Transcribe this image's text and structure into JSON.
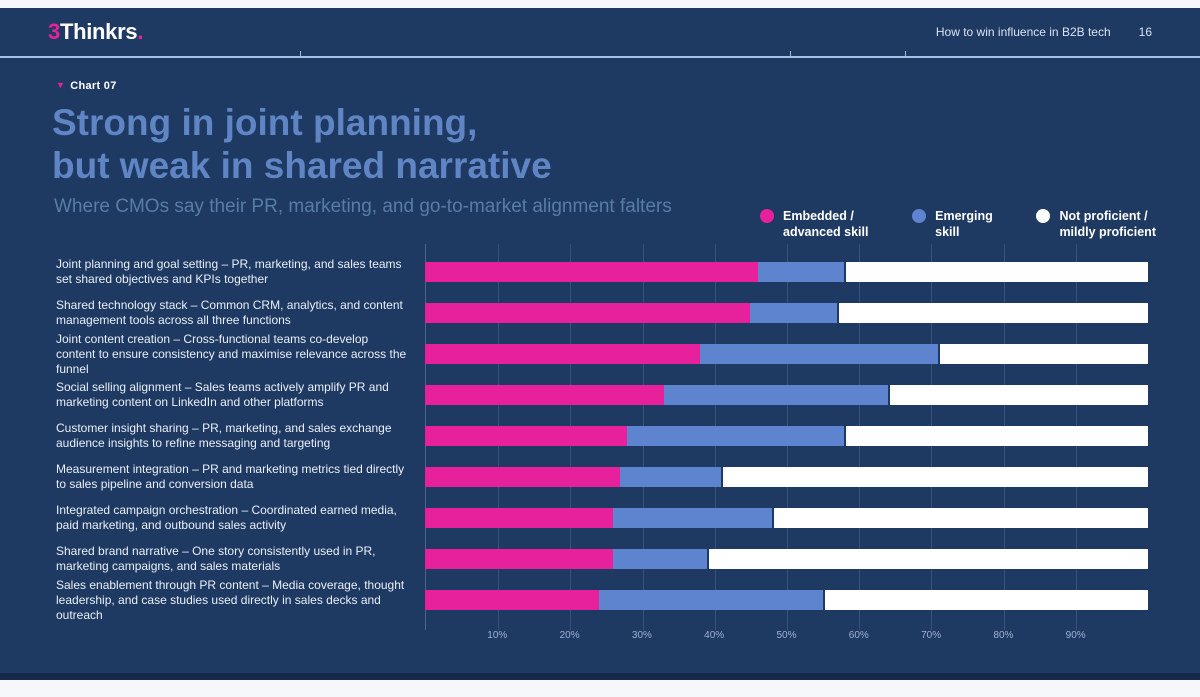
{
  "header": {
    "logo_prefix": "3",
    "logo_name": "Thinkrs",
    "logo_dot": ".",
    "doc_title": "How to win influence in B2B tech",
    "page_number": "16"
  },
  "chart_label": "Chart 07",
  "title_line1": "Strong in joint planning,",
  "title_line2": "but weak in shared narrative",
  "subtitle": "Where CMOs say their PR, marketing, and go-to-market alignment falters",
  "legend": {
    "items": [
      {
        "line1": "Embedded /",
        "line2": "advanced skill",
        "color": "#e6219b"
      },
      {
        "line1": "Emerging",
        "line2": "skill",
        "color": "#5f84cf"
      },
      {
        "line1": "Not proficient /",
        "line2": "mildly proficient",
        "color": "#ffffff"
      }
    ]
  },
  "colors": {
    "background": "#1f3a62",
    "footer_band": "#16294a",
    "divider": "#a6c1e6",
    "title": "#5f85c5",
    "subtitle": "#587ca8",
    "accent_pink": "#e6219b",
    "accent_blue": "#5f84cf",
    "accent_white": "#ffffff"
  },
  "chart_data": {
    "type": "bar",
    "orientation": "horizontal",
    "stacked": true,
    "unit": "%",
    "xlim": [
      0,
      100
    ],
    "grid": true,
    "legend_position": "top-right",
    "x_ticks": [
      "10%",
      "20%",
      "30%",
      "40%",
      "50%",
      "60%",
      "70%",
      "80%",
      "90%"
    ],
    "categories": [
      "Joint planning and goal setting – PR, marketing, and sales teams set shared objectives and KPIs together",
      "Shared technology stack – Common CRM, analytics, and content management tools across all three functions",
      "Joint content creation – Cross-functional teams co-develop content to ensure consistency and maximise relevance across the funnel",
      "Social selling alignment – Sales teams actively amplify PR and marketing content on LinkedIn and other platforms",
      "Customer insight sharing – PR, marketing, and sales exchange audience insights to refine messaging and targeting",
      "Measurement integration – PR and marketing metrics tied directly to sales pipeline and conversion data",
      "Integrated campaign orchestration – Coordinated earned media, paid marketing, and outbound sales activity",
      "Shared brand narrative – One story consistently used in PR, marketing campaigns, and sales materials",
      "Sales enablement through PR content – Media coverage, thought leadership, and case studies used directly in sales decks and outreach"
    ],
    "series": [
      {
        "name": "Embedded / advanced skill",
        "color": "#e6219b",
        "values": [
          46,
          45,
          38,
          33,
          28,
          27,
          26,
          26,
          24
        ]
      },
      {
        "name": "Emerging skill",
        "color": "#5f84cf",
        "values": [
          12,
          12,
          33,
          31,
          30,
          14,
          22,
          13,
          31
        ]
      },
      {
        "name": "Not proficient / mildly proficient",
        "color": "#ffffff",
        "values": [
          42,
          43,
          29,
          36,
          42,
          59,
          52,
          61,
          45
        ]
      }
    ]
  }
}
